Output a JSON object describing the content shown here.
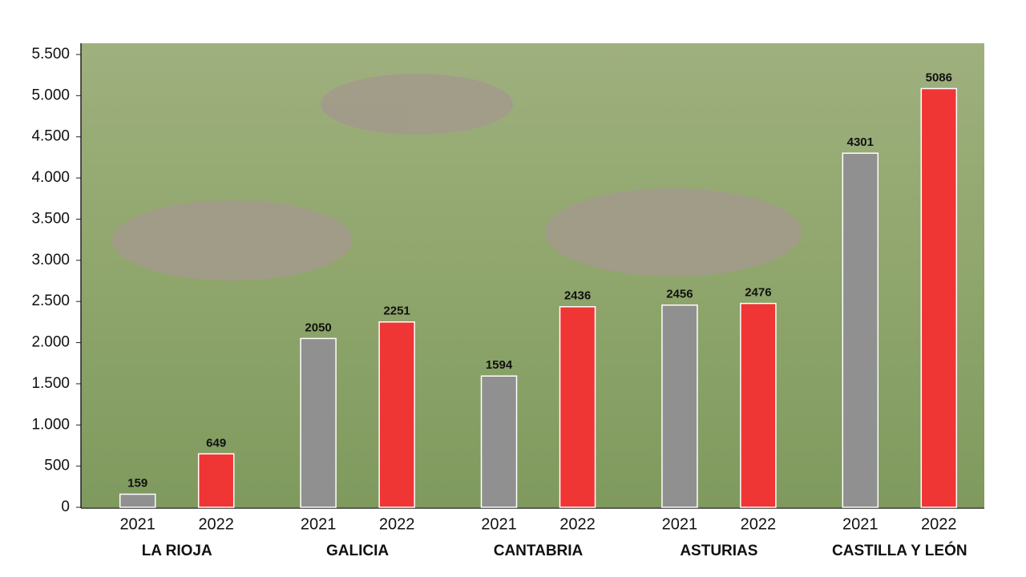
{
  "chart_data": {
    "type": "bar",
    "categories": [
      "LA RIOJA",
      "GALICIA",
      "CANTABRIA",
      "ASTURIAS",
      "CASTILLA Y LEÓN"
    ],
    "series": [
      {
        "name": "2021",
        "color": "#909090",
        "values": [
          159,
          2050,
          1594,
          2456,
          4301
        ]
      },
      {
        "name": "2022",
        "color": "#f03535",
        "values": [
          649,
          2251,
          2436,
          2476,
          5086
        ]
      }
    ],
    "ylim": [
      0,
      5500
    ],
    "yticks": [
      0,
      500,
      {
        "value": 1000,
        "label": "1.000"
      },
      {
        "value": 1500,
        "label": "1.500"
      },
      {
        "value": 2000,
        "label": "2.000"
      },
      {
        "value": 2500,
        "label": "2.500"
      },
      {
        "value": 3000,
        "label": "3.000"
      },
      {
        "value": 3500,
        "label": "3.500"
      },
      {
        "value": 4000,
        "label": "4.000"
      },
      {
        "value": 4500,
        "label": "4.500"
      },
      {
        "value": 5000,
        "label": "5.000"
      },
      {
        "value": 5500,
        "label": "5.500"
      }
    ]
  }
}
